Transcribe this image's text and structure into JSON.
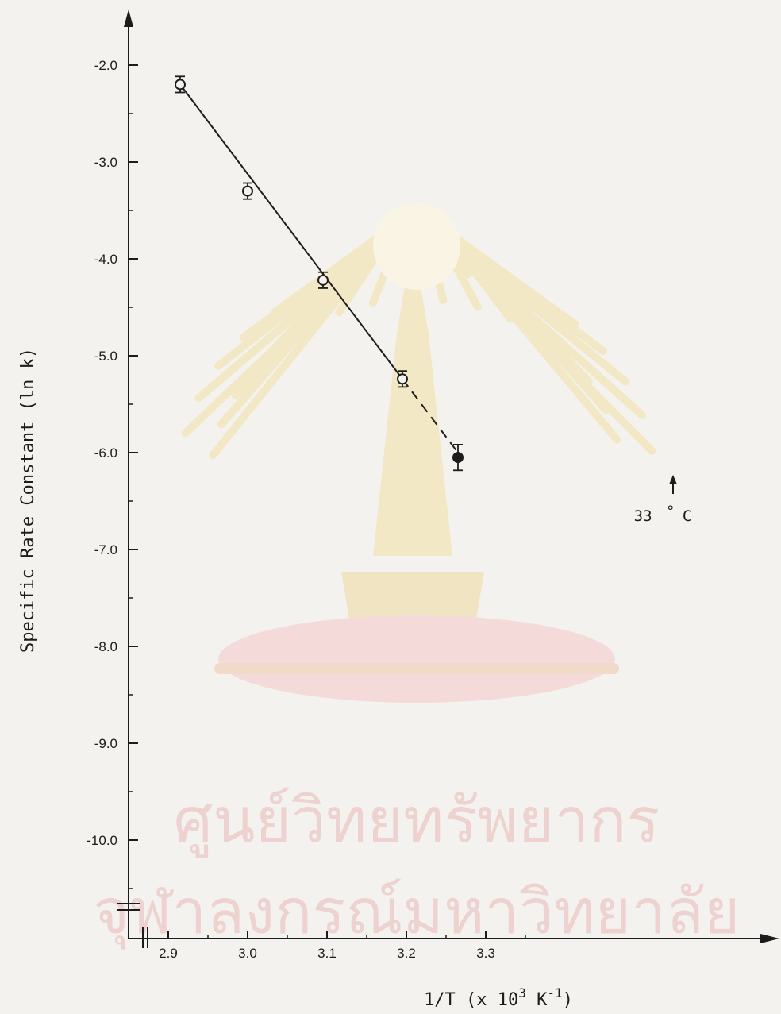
{
  "chart_data": {
    "type": "scatter",
    "x": [
      2.915,
      3.0,
      3.095,
      3.195,
      3.265
    ],
    "y": [
      -2.2,
      -3.3,
      -4.22,
      -5.24,
      -6.05
    ],
    "yerr": [
      0.05,
      0.05,
      0.05,
      0.05,
      0.1
    ],
    "marker_styles": [
      "open",
      "open",
      "open",
      "open",
      "filled"
    ],
    "fit_line": {
      "solid": {
        "x": [
          2.915,
          3.195
        ],
        "y": [
          -2.2,
          -5.24
        ]
      },
      "dashed": {
        "x": [
          3.195,
          3.265
        ],
        "y": [
          -5.24,
          -6.0
        ]
      }
    },
    "xlabel": "1/T (x 10",
    "xlabel_sup": "3",
    "xlabel_unit": " K",
    "xlabel_unit_sup": "-1",
    "xlabel_close": ")",
    "ylabel": "Specific Rate Constant (ln k)",
    "xlim": [
      2.87,
      3.36
    ],
    "ylim": [
      -10.6,
      -1.5
    ],
    "x_ticks": [
      2.9,
      3.0,
      3.1,
      3.2,
      3.3
    ],
    "x_tick_labels": [
      "2.9",
      "3.0",
      "3.1",
      "3.2",
      "3.3"
    ],
    "y_ticks": [
      -2.0,
      -3.0,
      -4.0,
      -5.0,
      -6.0,
      -7.0,
      -8.0,
      -9.0,
      -10.0
    ],
    "y_tick_labels": [
      "-2.0",
      "-3.0",
      "-4.0",
      "-5.0",
      "-6.0",
      "-7.0",
      "-8.0",
      "-9.0",
      "-10.0"
    ],
    "grid": false,
    "annotation": {
      "text": "33",
      "deg": "°",
      "unit": "C"
    }
  },
  "watermark": {
    "line1": "ศูนย์วิทยทรัพยากร",
    "line2": "จุฬาลงกรณ์มหาวิทยาลัย",
    "seal_color": "#f2dfa0",
    "text_color": "#e8b8b8"
  }
}
